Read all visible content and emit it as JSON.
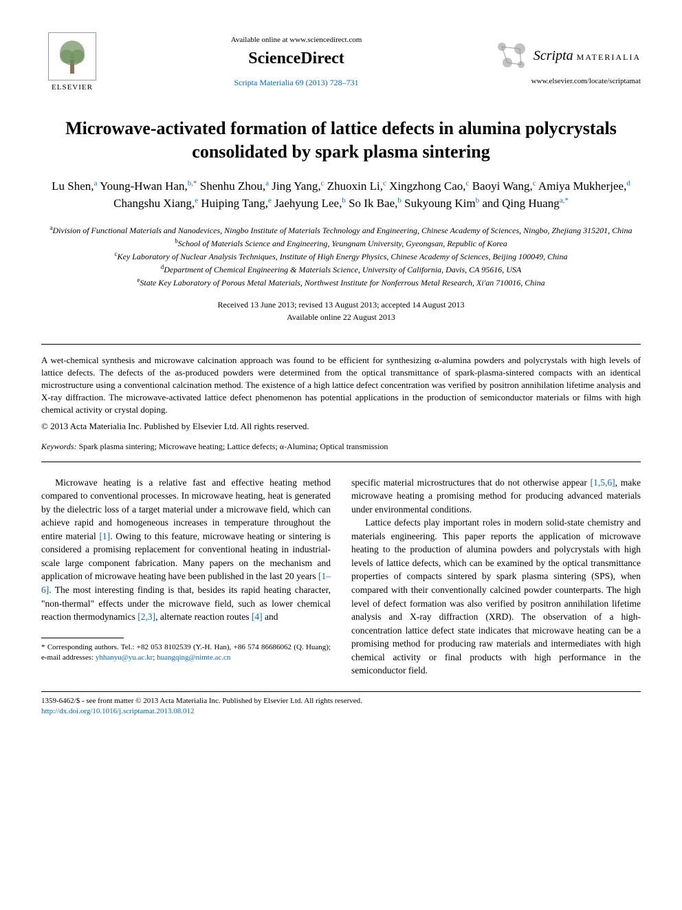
{
  "header": {
    "elsevier_label": "ELSEVIER",
    "available_text": "Available online at www.sciencedirect.com",
    "sciencedirect": "ScienceDirect",
    "journal_ref": "Scripta Materialia 69 (2013) 728–731",
    "scripta_name": "Scripta",
    "scripta_sub": "MATERIALIA",
    "journal_url": "www.elsevier.com/locate/scriptamat"
  },
  "title": "Microwave-activated formation of lattice defects in alumina polycrystals consolidated by spark plasma sintering",
  "authors_html": "Lu Shen,<span class='sup'>a</span> Young-Hwan Han,<span class='sup'>b,*</span> Shenhu Zhou,<span class='sup'>a</span> Jing Yang,<span class='sup'>c</span> Zhuoxin Li,<span class='sup'>c</span> Xingzhong Cao,<span class='sup'>c</span> Baoyi Wang,<span class='sup'>c</span> Amiya Mukherjee,<span class='sup'>d</span> Changshu Xiang,<span class='sup'>e</span> Huiping Tang,<span class='sup'>e</span> Jaehyung Lee,<span class='sup'>b</span> So Ik Bae,<span class='sup'>b</span> Sukyoung Kim<span class='sup'>b</span> and Qing Huang<span class='sup'>a,*</span>",
  "affiliations": [
    {
      "sup": "a",
      "text": "Division of Functional Materials and Nanodevices, Ningbo Institute of Materials Technology and Engineering, Chinese Academy of Sciences, Ningbo, Zhejiang 315201, China"
    },
    {
      "sup": "b",
      "text": "School of Materials Science and Engineering, Yeungnam University, Gyeongsan, Republic of Korea"
    },
    {
      "sup": "c",
      "text": "Key Laboratory of Nuclear Analysis Techniques, Institute of High Energy Physics, Chinese Academy of Sciences, Beijing 100049, China"
    },
    {
      "sup": "d",
      "text": "Department of Chemical Engineering & Materials Science, University of California, Davis, CA 95616, USA"
    },
    {
      "sup": "e",
      "text": "State Key Laboratory of Porous Metal Materials, Northwest Institute for Nonferrous Metal Research, Xi'an 710016, China"
    }
  ],
  "dates": {
    "received": "Received 13 June 2013; revised 13 August 2013; accepted 14 August 2013",
    "available": "Available online 22 August 2013"
  },
  "abstract": "A wet-chemical synthesis and microwave calcination approach was found to be efficient for synthesizing α-alumina powders and polycrystals with high levels of lattice defects. The defects of the as-produced powders were determined from the optical transmittance of spark-plasma-sintered compacts with an identical microstructure using a conventional calcination method. The existence of a high lattice defect concentration was verified by positron annihilation lifetime analysis and X-ray diffraction. The microwave-activated lattice defect phenomenon has potential applications in the production of semiconductor materials or films with high chemical activity or crystal doping.",
  "copyright": "© 2013 Acta Materialia Inc. Published by Elsevier Ltd. All rights reserved.",
  "keywords": {
    "label": "Keywords:",
    "text": "Spark plasma sintering; Microwave heating; Lattice defects; α-Alumina; Optical transmission"
  },
  "body": {
    "col1_p1_pre": "Microwave heating is a relative fast and effective heating method compared to conventional processes. In microwave heating, heat is generated by the dielectric loss of a target material under a microwave field, which can achieve rapid and homogeneous increases in temperature throughout the entire material ",
    "col1_ref1": "[1]",
    "col1_p1_mid1": ". Owing to this feature, microwave heating or sintering is considered a promising replacement for conventional heating in industrial-scale large component fabrication. Many papers on the mechanism and application of microwave heating have been published in the last 20 years ",
    "col1_ref2": "[1–6]",
    "col1_p1_mid2": ". The most interesting finding is that, besides its rapid heating character, \"non-thermal\" effects under the microwave field, such as lower chemical reaction thermodynamics ",
    "col1_ref3": "[2,3]",
    "col1_p1_mid3": ", alternate reaction routes ",
    "col1_ref4": "[4]",
    "col1_p1_end": " and",
    "col2_p1_pre": "specific material microstructures that do not otherwise appear ",
    "col2_ref1": "[1,5,6]",
    "col2_p1_end": ", make microwave heating a promising method for producing advanced materials under environmental conditions.",
    "col2_p2": "Lattice defects play important roles in modern solid-state chemistry and materials engineering. This paper reports the application of microwave heating to the production of alumina powders and polycrystals with high levels of lattice defects, which can be examined by the optical transmittance properties of compacts sintered by spark plasma sintering (SPS), when compared with their conventionally calcined powder counterparts. The high level of defect formation was also verified by positron annihilation lifetime analysis and X-ray diffraction (XRD). The observation of a high-concentration lattice defect state indicates that microwave heating can be a promising method for producing raw materials and intermediates with high chemical activity or final products with high performance in the semiconductor field."
  },
  "footnote": {
    "pre": "* Corresponding authors. Tel.: +82 053 8102539 (Y.-H. Han), +86 574 86686062 (Q. Huang); e-mail addresses: ",
    "email1": "yhhanyu@yu.ac.kr",
    "sep": "; ",
    "email2": "huangqing@nimte.ac.cn"
  },
  "bottom": {
    "line1": "1359-6462/$ - see front matter © 2013 Acta Materialia Inc. Published by Elsevier Ltd. All rights reserved.",
    "doi": "http://dx.doi.org/10.1016/j.scriptamat.2013.08.012"
  },
  "colors": {
    "link": "#0066cc",
    "text": "#000000",
    "background": "#ffffff"
  }
}
